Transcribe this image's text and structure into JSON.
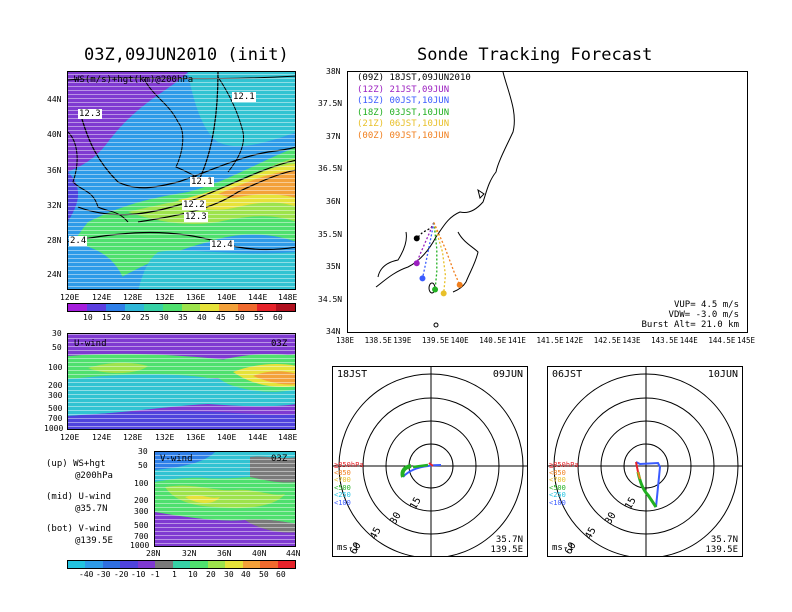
{
  "left": {
    "init_title": "03Z,09JUN2010 (init)",
    "ws_panel": {
      "label": "WS(m/s)+hgt(km)@200hPa",
      "contour_labels": [
        "12.1",
        "12.3",
        "12.1",
        "12.2",
        "12.3",
        "12.4",
        "2.4"
      ],
      "lat_ticks": [
        "44N",
        "40N",
        "36N",
        "32N",
        "28N",
        "24N"
      ],
      "lon_ticks": [
        "120E",
        "124E",
        "128E",
        "132E",
        "136E",
        "140E",
        "144E",
        "148E"
      ],
      "colorbar_labels": [
        "10",
        "15",
        "20",
        "25",
        "30",
        "35",
        "40",
        "45",
        "50",
        "55",
        "60"
      ]
    },
    "u_panel": {
      "label": "U-wind",
      "time": "03Z",
      "p_ticks": [
        "30",
        "50",
        "100",
        "200",
        "300",
        "500",
        "700",
        "1000"
      ],
      "lon_ticks": [
        "120E",
        "124E",
        "128E",
        "132E",
        "136E",
        "140E",
        "144E",
        "148E"
      ]
    },
    "v_panel": {
      "label": "V-wind",
      "time": "03Z",
      "p_ticks": [
        "30",
        "50",
        "100",
        "200",
        "300",
        "500",
        "700",
        "1000"
      ],
      "lat_ticks": [
        "28N",
        "32N",
        "36N",
        "40N",
        "44N"
      ],
      "colorbar_labels": [
        "-40",
        "-30",
        "-20",
        "-10",
        "-1",
        "1",
        "10",
        "20",
        "30",
        "40",
        "50",
        "60"
      ]
    },
    "notes": [
      {
        "line1": "(up) WS+hgt",
        "line2": "@200hPa"
      },
      {
        "line1": "(mid) U-wind",
        "line2": "@35.7N"
      },
      {
        "line1": "(bot) V-wind",
        "line2": "@139.5E"
      }
    ]
  },
  "right": {
    "title": "Sonde Tracking Forecast",
    "legend": [
      {
        "utc": "(09Z)",
        "jst": "18JST,09JUN2010",
        "color": "#000000"
      },
      {
        "utc": "(12Z)",
        "jst": "21JST,09JUN",
        "color": "#9b1fc0"
      },
      {
        "utc": "(15Z)",
        "jst": "00JST,10JUN",
        "color": "#3a5bff"
      },
      {
        "utc": "(18Z)",
        "jst": "03JST,10JUN",
        "color": "#22b022"
      },
      {
        "utc": "(21Z)",
        "jst": "06JST,10JUN",
        "color": "#e8c02a"
      },
      {
        "utc": "(00Z)",
        "jst": "09JST,10JUN",
        "color": "#f07f1e"
      }
    ],
    "map_lat_ticks": [
      "38N",
      "37.5N",
      "37N",
      "36.5N",
      "36N",
      "35.5N",
      "35N",
      "34.5N",
      "34N"
    ],
    "map_lon_ticks": [
      "138E",
      "138.5E",
      "139E",
      "139.5E",
      "140E",
      "140.5E",
      "141E",
      "141.5E",
      "142E",
      "142.5E",
      "143E",
      "143.5E",
      "144E",
      "144.5E",
      "145E"
    ],
    "params": {
      "vup": "VUP= 4.5 m/s",
      "vdw": "VDW= -3.0 m/s",
      "burst": "Burst Alt= 21.0 km"
    },
    "hodo_left": {
      "jst": "18JST",
      "date": "09JUN"
    },
    "hodo_right": {
      "jst": "06JST",
      "date": "10JUN"
    },
    "hodo_ring_labels": [
      "15",
      "30",
      "45",
      "60"
    ],
    "hodo_legend": [
      "≧850hPa",
      "<850",
      "<700",
      "<500",
      "<250",
      "<100"
    ],
    "hodo_units": "ms-1",
    "hodo_lat": "35.7N",
    "hodo_lon": "139.5E"
  },
  "chart_data": [
    {
      "type": "heatmap",
      "title": "03Z,09JUN2010 (init)",
      "subtitle": "WS(m/s)+hgt(km)@200hPa",
      "xlim": [
        120,
        150
      ],
      "ylim": [
        22,
        48
      ],
      "ws_levels": [
        10,
        15,
        20,
        25,
        30,
        35,
        40,
        45,
        50,
        55,
        60
      ],
      "height_contours_km": [
        12.1,
        12.2,
        12.3,
        12.4
      ]
    },
    {
      "type": "heatmap",
      "title": "U-wind",
      "subtitle": "03Z",
      "xlim": [
        120,
        150
      ],
      "pressure_levels_hPa": [
        30,
        50,
        100,
        200,
        300,
        500,
        700,
        1000
      ]
    },
    {
      "type": "heatmap",
      "title": "V-wind",
      "subtitle": "03Z",
      "xlim": [
        28,
        44
      ],
      "pressure_levels_hPa": [
        30,
        50,
        100,
        200,
        300,
        500,
        700,
        1000
      ],
      "levels": [
        -40,
        -30,
        -20,
        -10,
        -1,
        1,
        10,
        20,
        30,
        40,
        50,
        60
      ]
    },
    {
      "type": "line",
      "title": "Sonde Tracking Forecast",
      "xlim": [
        138,
        145
      ],
      "ylim": [
        34,
        38
      ],
      "series": [
        {
          "name": "(09Z) 18JST,09JUN2010",
          "color": "#000000",
          "points": [
            [
              139.5,
              35.7
            ],
            [
              139.45,
              35.62
            ],
            [
              139.3,
              35.55
            ],
            [
              139.2,
              35.46
            ]
          ]
        },
        {
          "name": "(12Z) 21JST,09JUN",
          "color": "#9b1fc0",
          "points": [
            [
              139.5,
              35.7
            ],
            [
              139.35,
              35.4
            ],
            [
              139.25,
              35.2
            ],
            [
              139.2,
              35.08
            ]
          ]
        },
        {
          "name": "(15Z) 00JST,10JUN",
          "color": "#3a5bff",
          "points": [
            [
              139.5,
              35.7
            ],
            [
              139.42,
              35.35
            ],
            [
              139.35,
              35.05
            ],
            [
              139.3,
              34.85
            ]
          ]
        },
        {
          "name": "(18Z) 03JST,10JUN",
          "color": "#22b022",
          "points": [
            [
              139.5,
              35.7
            ],
            [
              139.55,
              35.3
            ],
            [
              139.55,
              34.95
            ],
            [
              139.52,
              34.68
            ]
          ]
        },
        {
          "name": "(21Z) 06JST,10JUN",
          "color": "#e8c02a",
          "points": [
            [
              139.5,
              35.7
            ],
            [
              139.65,
              35.25
            ],
            [
              139.7,
              34.9
            ],
            [
              139.67,
              34.62
            ]
          ]
        },
        {
          "name": "(00Z) 09JST,10JUN",
          "color": "#f07f1e",
          "points": [
            [
              139.5,
              35.7
            ],
            [
              139.7,
              35.3
            ],
            [
              139.85,
              34.95
            ],
            [
              139.95,
              34.75
            ]
          ]
        }
      ]
    },
    {
      "type": "scatter",
      "title": "18JST 09JUN",
      "units": "ms-1",
      "ring_values": [
        15,
        30,
        45,
        60
      ],
      "location": "35.7N 139.5E"
    },
    {
      "type": "scatter",
      "title": "06JST 10JUN",
      "units": "ms-1",
      "ring_values": [
        15,
        30,
        45,
        60
      ],
      "location": "35.7N 139.5E"
    }
  ]
}
